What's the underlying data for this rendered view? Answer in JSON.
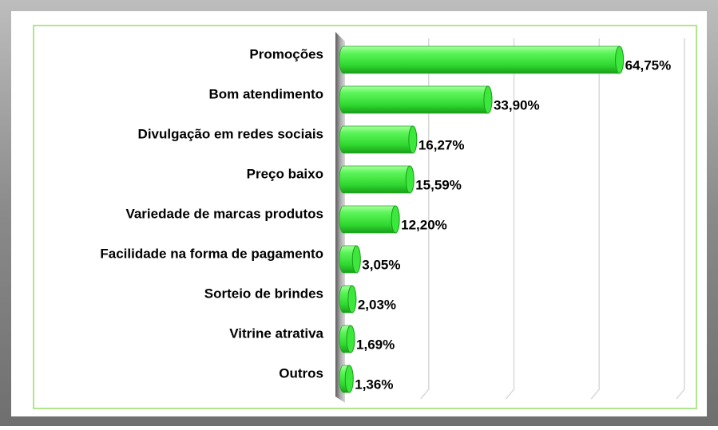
{
  "chart_data": {
    "type": "bar",
    "orientation": "horizontal",
    "categories": [
      "Promoções",
      "Bom atendimento",
      "Divulgação em redes sociais",
      "Preço baixo",
      "Variedade de marcas produtos",
      "Facilidade na forma de pagamento",
      "Sorteio de brindes",
      "Vitrine atrativa",
      "Outros"
    ],
    "values": [
      64.75,
      33.9,
      16.27,
      15.59,
      12.2,
      3.05,
      2.03,
      1.69,
      1.36
    ],
    "value_labels": [
      "64,75%",
      "33,90%",
      "16,27%",
      "15,59%",
      "12,20%",
      "3,05%",
      "2,03%",
      "1,69%",
      "1,36%"
    ],
    "color": "#33e533",
    "xlim": [
      0,
      80
    ],
    "xticks": [
      0,
      20,
      40,
      60,
      80
    ],
    "grid": true
  }
}
